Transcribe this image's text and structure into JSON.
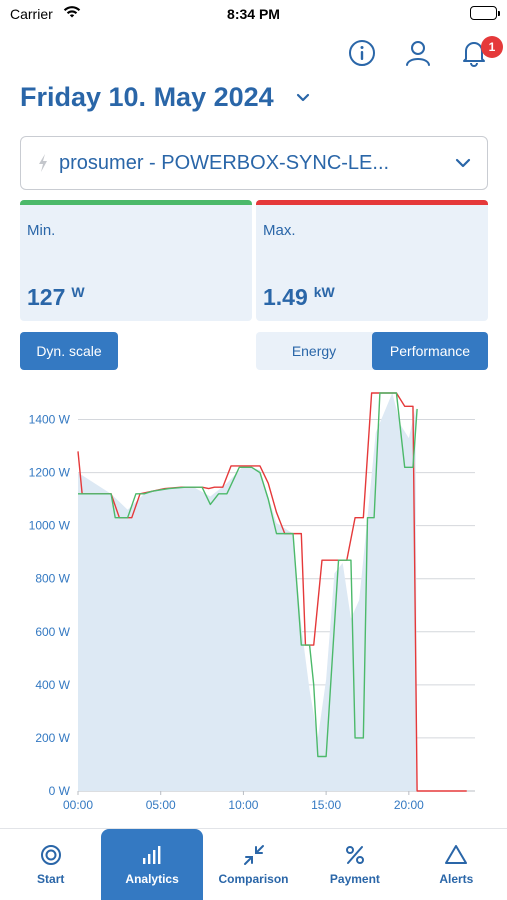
{
  "status_bar": {
    "carrier": "Carrier",
    "time": "8:34 PM"
  },
  "header": {
    "notification_count": "1"
  },
  "date": {
    "title": "Friday 10. May 2024"
  },
  "device": {
    "label": "prosumer - POWERBOX-SYNC-LE..."
  },
  "stats": {
    "min": {
      "title": "Min.",
      "value": "127",
      "unit": "W",
      "color": "#4cb96a"
    },
    "max": {
      "title": "Max.",
      "value": "1.49",
      "unit": "kW",
      "color": "#e5393a"
    }
  },
  "controls": {
    "dyn_scale_label": "Dyn. scale",
    "segments": [
      {
        "label": "Energy",
        "active": false
      },
      {
        "label": "Performance",
        "active": true
      }
    ]
  },
  "chart_data": {
    "type": "line",
    "xlabel": "",
    "ylabel": "",
    "xlim": [
      0,
      24
    ],
    "ylim": [
      0,
      1400
    ],
    "x_ticks": [
      "00:00",
      "05:00",
      "10:00",
      "15:00",
      "20:00"
    ],
    "y_ticks": [
      "0 W",
      "200 W",
      "400 W",
      "600 W",
      "800 W",
      "1000 W",
      "1200 W",
      "1400 W"
    ],
    "series": [
      {
        "role": "max",
        "color": "#e5393a",
        "points": [
          [
            0,
            1280
          ],
          [
            0.25,
            1120
          ],
          [
            2,
            1120
          ],
          [
            2.5,
            1030
          ],
          [
            3.25,
            1030
          ],
          [
            3.75,
            1120
          ],
          [
            4.5,
            1130
          ],
          [
            5.25,
            1140
          ],
          [
            6.25,
            1145
          ],
          [
            7.5,
            1145
          ],
          [
            7.9,
            1140
          ],
          [
            8.25,
            1145
          ],
          [
            8.75,
            1145
          ],
          [
            9.25,
            1225
          ],
          [
            10,
            1225
          ],
          [
            11,
            1225
          ],
          [
            11.5,
            1160
          ],
          [
            12,
            1050
          ],
          [
            12.5,
            970
          ],
          [
            13,
            970
          ],
          [
            13.5,
            970
          ],
          [
            13.75,
            550
          ],
          [
            14.25,
            550
          ],
          [
            14.75,
            870
          ],
          [
            16,
            870
          ],
          [
            16.25,
            870
          ],
          [
            16.75,
            1030
          ],
          [
            17.25,
            1030
          ],
          [
            17.75,
            1500
          ],
          [
            19.25,
            1500
          ],
          [
            19.75,
            1450
          ],
          [
            20.25,
            1450
          ],
          [
            20.5,
            0
          ],
          [
            23.5,
            0
          ]
        ]
      },
      {
        "role": "min",
        "color": "#4cb96a",
        "points": [
          [
            0,
            1120
          ],
          [
            2,
            1120
          ],
          [
            2.25,
            1030
          ],
          [
            3,
            1030
          ],
          [
            3.5,
            1120
          ],
          [
            4,
            1120
          ],
          [
            4.5,
            1130
          ],
          [
            5.5,
            1140
          ],
          [
            6.5,
            1145
          ],
          [
            7.5,
            1145
          ],
          [
            8,
            1080
          ],
          [
            8.5,
            1120
          ],
          [
            9,
            1120
          ],
          [
            9.75,
            1220
          ],
          [
            10.5,
            1220
          ],
          [
            11,
            1200
          ],
          [
            11.5,
            1100
          ],
          [
            12,
            970
          ],
          [
            13,
            970
          ],
          [
            13.5,
            550
          ],
          [
            14,
            550
          ],
          [
            14.25,
            400
          ],
          [
            14.5,
            130
          ],
          [
            15,
            130
          ],
          [
            15.75,
            870
          ],
          [
            16.5,
            870
          ],
          [
            16.75,
            200
          ],
          [
            17.25,
            200
          ],
          [
            17.5,
            1030
          ],
          [
            17.9,
            1030
          ],
          [
            18.25,
            1500
          ],
          [
            18.75,
            1500
          ],
          [
            19.25,
            1500
          ],
          [
            19.75,
            1220
          ],
          [
            20.25,
            1220
          ],
          [
            20.5,
            1440
          ]
        ]
      }
    ],
    "area": {
      "color": "#dde9f4",
      "points": [
        [
          0,
          1200
        ],
        [
          2,
          1120
        ],
        [
          3,
          1060
        ],
        [
          4,
          1120
        ],
        [
          5,
          1140
        ],
        [
          6,
          1145
        ],
        [
          7,
          1145
        ],
        [
          8,
          1110
        ],
        [
          9,
          1160
        ],
        [
          10,
          1225
        ],
        [
          11,
          1210
        ],
        [
          12,
          1010
        ],
        [
          13,
          970
        ],
        [
          13.5,
          620
        ],
        [
          14,
          380
        ],
        [
          14.5,
          200
        ],
        [
          15,
          420
        ],
        [
          15.5,
          820
        ],
        [
          16,
          860
        ],
        [
          16.5,
          650
        ],
        [
          17,
          720
        ],
        [
          17.5,
          1030
        ],
        [
          18,
          1350
        ],
        [
          19,
          1500
        ],
        [
          19.5,
          1380
        ],
        [
          20,
          1330
        ],
        [
          20.4,
          1440
        ],
        [
          20.5,
          0
        ]
      ]
    }
  },
  "tabs": [
    {
      "label": "Start",
      "icon": "start-icon",
      "active": false
    },
    {
      "label": "Analytics",
      "icon": "analytics-icon",
      "active": true
    },
    {
      "label": "Comparison",
      "icon": "comparison-icon",
      "active": false
    },
    {
      "label": "Payment",
      "icon": "payment-icon",
      "active": false
    },
    {
      "label": "Alerts",
      "icon": "alerts-icon",
      "active": false
    }
  ]
}
